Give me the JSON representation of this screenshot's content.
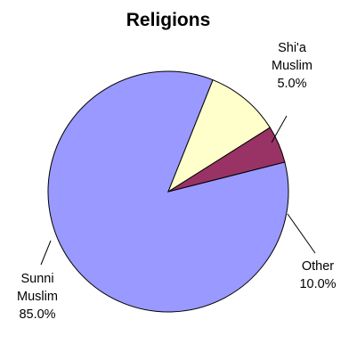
{
  "chart_data": {
    "type": "pie",
    "title": "Religions",
    "slices": [
      {
        "lines": [
          "Sunni",
          "Muslim"
        ],
        "value": 85.0,
        "value_label": "85.0%",
        "color": "#9999ff"
      },
      {
        "lines": [
          "Shi'a",
          "Muslim"
        ],
        "value": 5.0,
        "value_label": "5.0%",
        "color": "#993366"
      },
      {
        "lines": [
          "Other"
        ],
        "value": 10.0,
        "value_label": "10.0%",
        "color": "#ffffcc"
      }
    ]
  }
}
